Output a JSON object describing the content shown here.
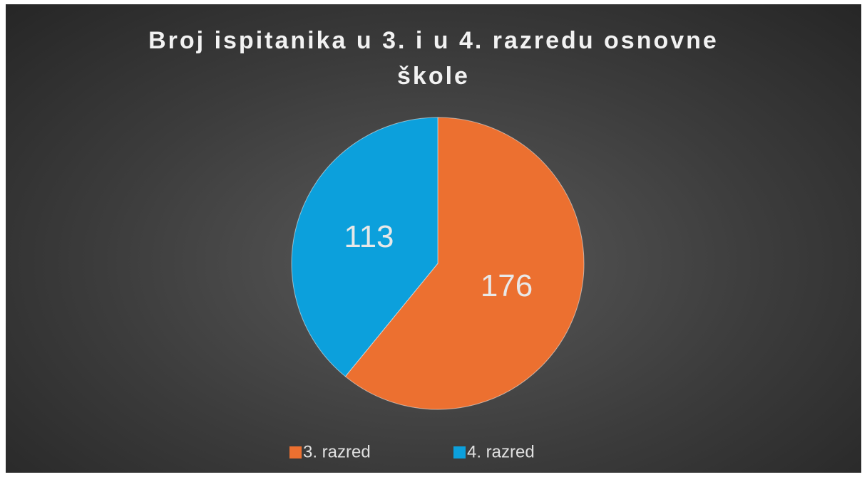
{
  "chart_data": {
    "type": "pie",
    "title": "Broj ispitanika u 3. i u 4. razredu osnovne škole",
    "categories": [
      "3. razred",
      "4. razred"
    ],
    "values": [
      176,
      113
    ],
    "colors": [
      "#ec7030",
      "#0ca0dc"
    ],
    "legend": "bottom"
  }
}
